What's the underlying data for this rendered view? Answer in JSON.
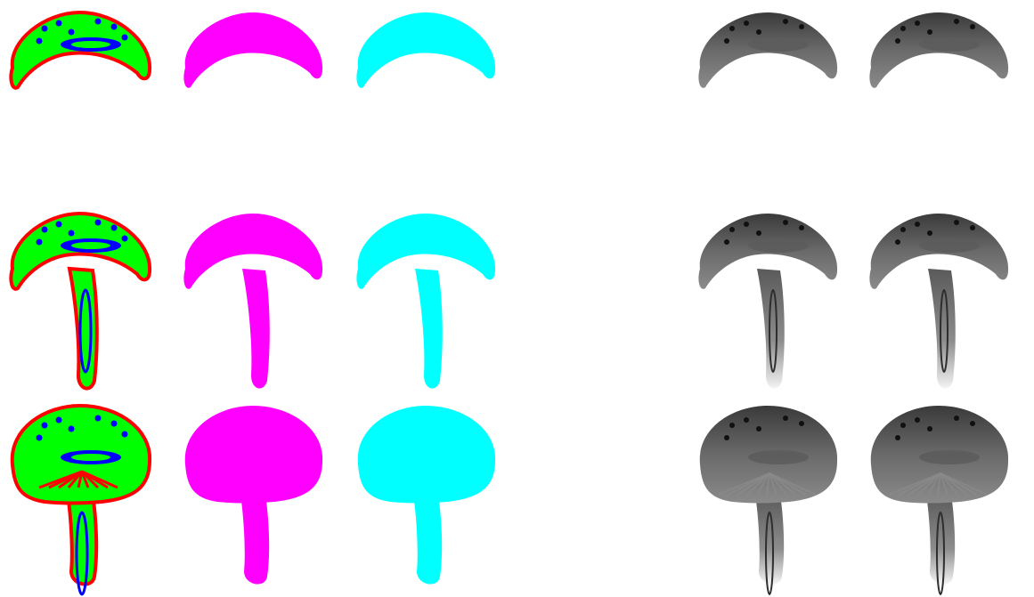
{
  "colors": {
    "background": "#ffffff",
    "seg_green": "#00ff00",
    "seg_blue": "#0000ff",
    "seg_red": "#ff0000",
    "mask_magenta": "#ff00ff",
    "mask_cyan": "#00ffff",
    "render_dark": "#2e2e2e",
    "render_mid": "#5c5c5c",
    "render_light": "#8a8a8a"
  },
  "grid": {
    "rows": [
      {
        "name": "cap-only",
        "shape": "cap"
      },
      {
        "name": "thin-cap-with-stem",
        "shape": "thin-mushroom"
      },
      {
        "name": "domed-cap-with-stem",
        "shape": "domed-mushroom"
      }
    ],
    "columns": [
      {
        "name": "segmentation-map",
        "style": "segmentation"
      },
      {
        "name": "magenta-mask",
        "style": "magenta"
      },
      {
        "name": "cyan-mask",
        "style": "cyan"
      },
      {
        "name": "grayscale-render-a",
        "style": "render"
      },
      {
        "name": "grayscale-render-b",
        "style": "render"
      }
    ]
  }
}
